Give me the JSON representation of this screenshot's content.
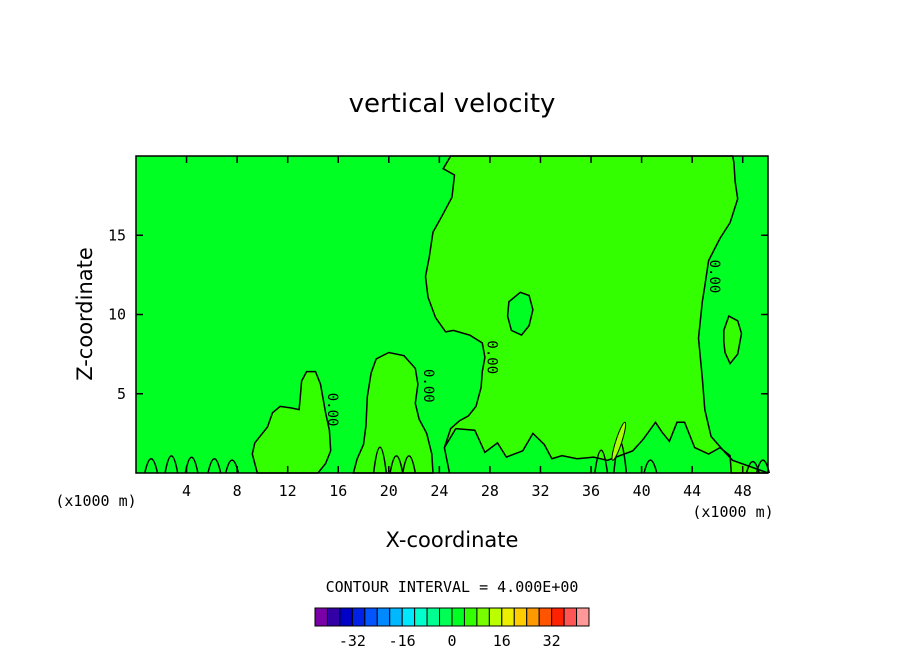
{
  "chart_data": {
    "type": "contour",
    "title": "vertical velocity",
    "xlabel": "X-coordinate",
    "ylabel": "Z-coordinate",
    "x_unit_left": "(x1000 m)",
    "x_unit_right": "(x1000 m)",
    "xlim": [
      0,
      50
    ],
    "ylim": [
      0,
      20
    ],
    "x_ticks": [
      4,
      8,
      12,
      16,
      20,
      24,
      28,
      32,
      36,
      40,
      44,
      48
    ],
    "y_ticks": [
      5,
      10,
      15
    ],
    "contour_labels": [
      {
        "text": "0.00",
        "x": 15.2,
        "z": 4.0
      },
      {
        "text": "0.00",
        "x": 22.8,
        "z": 5.5
      },
      {
        "text": "0.00",
        "x": 27.8,
        "z": 7.3
      },
      {
        "text": "0.00",
        "x": 45.4,
        "z": 12.4
      }
    ],
    "contour_interval_text": "CONTOUR INTERVAL =",
    "contour_interval_value": "4.000E+00",
    "colorbar": {
      "tick_labels": [
        "-32",
        "-16",
        "0",
        "16",
        "32"
      ],
      "tick_values": [
        -32,
        -16,
        0,
        16,
        32
      ],
      "range": [
        -40,
        40
      ],
      "step": 4,
      "colors": [
        "#7a00a8",
        "#3300a8",
        "#0000c8",
        "#0022e6",
        "#0055ff",
        "#0088ff",
        "#00b8ff",
        "#00e8ff",
        "#00ffcc",
        "#00ff90",
        "#00ff55",
        "#00ff22",
        "#33ff00",
        "#77ff00",
        "#bbff00",
        "#eeee00",
        "#ffcc00",
        "#ff9900",
        "#ff5500",
        "#ff2200",
        "#ff5555",
        "#ff9999"
      ]
    },
    "fields": {
      "background_color": "#00ff22",
      "positive_region_color": "#33ff00",
      "contour_color": "#000000"
    }
  }
}
